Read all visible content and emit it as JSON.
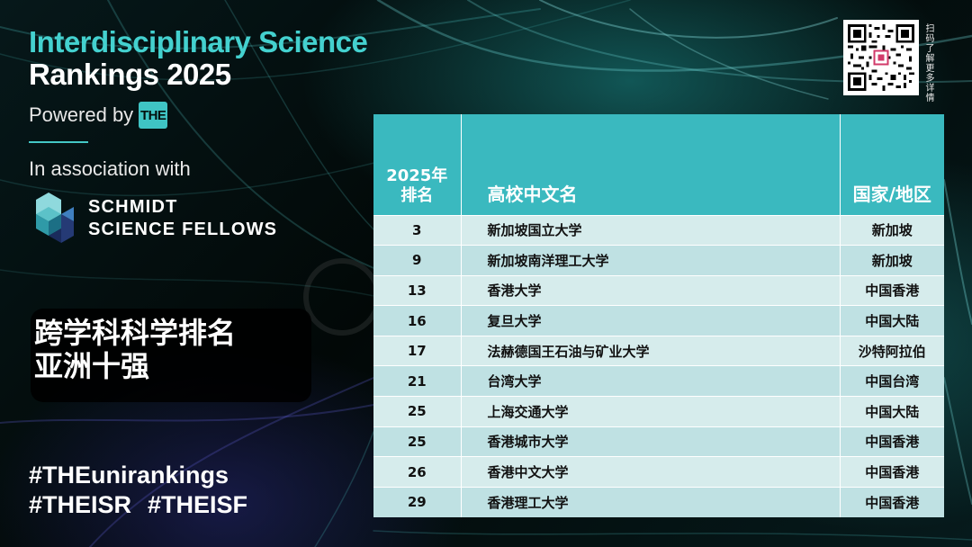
{
  "header": {
    "title_line1": "Interdisciplinary Science",
    "title_line2": "Rankings 2025",
    "powered_by": "Powered by",
    "the_logo_text": "THE",
    "association": "In association with",
    "partner_line1": "SCHMIDT",
    "partner_line2": "SCIENCE FELLOWS"
  },
  "banner": {
    "line1": "跨学科科学排名",
    "line2": "亚洲十强"
  },
  "hashtags": {
    "line1": "#THEunirankings",
    "tag2": "#THEISR",
    "tag3": "#THEISF"
  },
  "qr": {
    "caption": "扫码了解更多详情"
  },
  "table": {
    "headers": {
      "rank_line1": "2025年",
      "rank_line2": "排名",
      "name": "高校中文名",
      "region": "国家/地区"
    },
    "rows": [
      {
        "rank": "3",
        "name": "新加坡国立大学",
        "region": "新加坡"
      },
      {
        "rank": "9",
        "name": "新加坡南洋理工大学",
        "region": "新加坡"
      },
      {
        "rank": "13",
        "name": "香港大学",
        "region": "中国香港"
      },
      {
        "rank": "16",
        "name": "复旦大学",
        "region": "中国大陆"
      },
      {
        "rank": "17",
        "name": "法赫德国王石油与矿业大学",
        "region": "沙特阿拉伯"
      },
      {
        "rank": "21",
        "name": "台湾大学",
        "region": "中国台湾"
      },
      {
        "rank": "25",
        "name": "上海交通大学",
        "region": "中国大陆"
      },
      {
        "rank": "25",
        "name": "香港城市大学",
        "region": "中国香港"
      },
      {
        "rank": "26",
        "name": "香港中文大学",
        "region": "中国香港"
      },
      {
        "rank": "29",
        "name": "香港理工大学",
        "region": "中国香港"
      }
    ]
  },
  "colors": {
    "accent_teal": "#44d1cf",
    "table_header": "#3ab9bf",
    "row_light": "#d6ecec",
    "row_alt": "#bfe1e3"
  }
}
